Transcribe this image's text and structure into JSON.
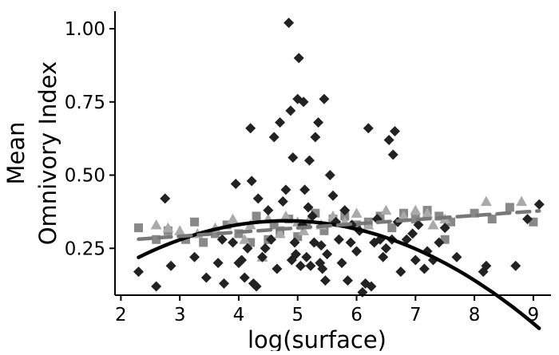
{
  "chart_data": {
    "type": "scatter",
    "title": "",
    "xlabel": "log(surface)",
    "ylabel_lines": [
      "Mean",
      "Omnivory Index"
    ],
    "xlim": [
      1.9,
      9.3
    ],
    "ylim": [
      0.09,
      1.06
    ],
    "x_ticks": [
      2,
      3,
      4,
      5,
      6,
      7,
      8,
      9
    ],
    "x_tick_labels": [
      "2",
      "3",
      "4",
      "5",
      "6",
      "7",
      "8",
      "9"
    ],
    "y_ticks": [
      0.25,
      0.5,
      0.75,
      1.0
    ],
    "y_tick_labels": [
      "0.25",
      "0.50",
      "0.75",
      "1.00"
    ],
    "grid": false,
    "legend": "none",
    "series": [
      {
        "marker": "diamond",
        "color": "#222222",
        "points": [
          [
            2.3,
            0.17
          ],
          [
            2.6,
            0.12
          ],
          [
            2.75,
            0.42
          ],
          [
            2.85,
            0.19
          ],
          [
            3.25,
            0.22
          ],
          [
            3.45,
            0.15
          ],
          [
            3.65,
            0.2
          ],
          [
            3.72,
            0.28
          ],
          [
            3.75,
            0.13
          ],
          [
            3.9,
            0.27
          ],
          [
            3.95,
            0.47
          ],
          [
            4.0,
            0.2
          ],
          [
            4.05,
            0.21
          ],
          [
            4.1,
            0.15
          ],
          [
            4.15,
            0.25
          ],
          [
            4.2,
            0.66
          ],
          [
            4.22,
            0.48
          ],
          [
            4.25,
            0.13
          ],
          [
            4.3,
            0.12
          ],
          [
            4.33,
            0.42
          ],
          [
            4.4,
            0.22
          ],
          [
            4.45,
            0.25
          ],
          [
            4.5,
            0.38
          ],
          [
            4.55,
            0.28
          ],
          [
            4.6,
            0.63
          ],
          [
            4.65,
            0.18
          ],
          [
            4.7,
            0.68
          ],
          [
            4.75,
            0.41
          ],
          [
            4.8,
            0.45
          ],
          [
            4.85,
            1.02
          ],
          [
            4.88,
            0.72
          ],
          [
            4.9,
            0.21
          ],
          [
            4.92,
            0.56
          ],
          [
            4.95,
            0.27
          ],
          [
            4.97,
            0.23
          ],
          [
            5.0,
            0.76
          ],
          [
            5.02,
            0.9
          ],
          [
            5.05,
            0.19
          ],
          [
            5.08,
            0.33
          ],
          [
            5.1,
            0.75
          ],
          [
            5.12,
            0.45
          ],
          [
            5.15,
            0.22
          ],
          [
            5.18,
            0.39
          ],
          [
            5.2,
            0.55
          ],
          [
            5.22,
            0.19
          ],
          [
            5.25,
            0.36
          ],
          [
            5.28,
            0.27
          ],
          [
            5.3,
            0.63
          ],
          [
            5.35,
            0.68
          ],
          [
            5.38,
            0.2
          ],
          [
            5.4,
            0.26
          ],
          [
            5.42,
            0.18
          ],
          [
            5.45,
            0.76
          ],
          [
            5.47,
            0.14
          ],
          [
            5.5,
            0.23
          ],
          [
            5.55,
            0.5
          ],
          [
            5.6,
            0.43
          ],
          [
            5.65,
            0.34
          ],
          [
            5.7,
            0.28
          ],
          [
            5.75,
            0.2
          ],
          [
            5.8,
            0.38
          ],
          [
            5.85,
            0.14
          ],
          [
            5.9,
            0.27
          ],
          [
            5.92,
            0.33
          ],
          [
            6.0,
            0.24
          ],
          [
            6.05,
            0.31
          ],
          [
            6.1,
            0.1
          ],
          [
            6.15,
            0.13
          ],
          [
            6.2,
            0.66
          ],
          [
            6.25,
            0.12
          ],
          [
            6.3,
            0.27
          ],
          [
            6.35,
            0.35
          ],
          [
            6.4,
            0.28
          ],
          [
            6.45,
            0.22
          ],
          [
            6.5,
            0.25
          ],
          [
            6.55,
            0.62
          ],
          [
            6.6,
            0.28
          ],
          [
            6.62,
            0.57
          ],
          [
            6.65,
            0.65
          ],
          [
            6.7,
            0.34
          ],
          [
            6.75,
            0.17
          ],
          [
            6.85,
            0.28
          ],
          [
            6.95,
            0.3
          ],
          [
            7.0,
            0.21
          ],
          [
            7.05,
            0.33
          ],
          [
            7.15,
            0.18
          ],
          [
            7.2,
            0.24
          ],
          [
            7.3,
            0.21
          ],
          [
            7.4,
            0.27
          ],
          [
            7.5,
            0.32
          ],
          [
            7.7,
            0.22
          ],
          [
            8.15,
            0.17
          ],
          [
            8.2,
            0.19
          ],
          [
            8.7,
            0.19
          ],
          [
            8.9,
            0.35
          ],
          [
            9.1,
            0.4
          ]
        ]
      },
      {
        "marker": "square",
        "color": "#888888",
        "points": [
          [
            2.3,
            0.32
          ],
          [
            2.6,
            0.28
          ],
          [
            2.8,
            0.31
          ],
          [
            3.1,
            0.28
          ],
          [
            3.25,
            0.34
          ],
          [
            3.4,
            0.27
          ],
          [
            3.6,
            0.3
          ],
          [
            3.8,
            0.33
          ],
          [
            4.0,
            0.3
          ],
          [
            4.2,
            0.27
          ],
          [
            4.3,
            0.36
          ],
          [
            4.5,
            0.28
          ],
          [
            4.6,
            0.33
          ],
          [
            4.7,
            0.31
          ],
          [
            4.85,
            0.35
          ],
          [
            5.0,
            0.29
          ],
          [
            5.15,
            0.33
          ],
          [
            5.3,
            0.37
          ],
          [
            5.45,
            0.31
          ],
          [
            5.6,
            0.35
          ],
          [
            5.8,
            0.36
          ],
          [
            6.0,
            0.33
          ],
          [
            6.2,
            0.34
          ],
          [
            6.4,
            0.36
          ],
          [
            6.6,
            0.32
          ],
          [
            6.8,
            0.37
          ],
          [
            7.0,
            0.35
          ],
          [
            7.2,
            0.38
          ],
          [
            7.4,
            0.36
          ],
          [
            7.5,
            0.28
          ],
          [
            7.6,
            0.34
          ],
          [
            8.0,
            0.37
          ],
          [
            8.3,
            0.35
          ],
          [
            8.6,
            0.39
          ],
          [
            9.0,
            0.34
          ]
        ]
      },
      {
        "marker": "triangle",
        "color": "#aaaaaa",
        "points": [
          [
            2.6,
            0.33
          ],
          [
            2.8,
            0.32
          ],
          [
            3.0,
            0.31
          ],
          [
            3.3,
            0.3
          ],
          [
            3.6,
            0.32
          ],
          [
            3.9,
            0.35
          ],
          [
            4.1,
            0.28
          ],
          [
            4.2,
            0.33
          ],
          [
            4.4,
            0.22
          ],
          [
            4.5,
            0.35
          ],
          [
            4.7,
            0.3
          ],
          [
            4.8,
            0.36
          ],
          [
            5.0,
            0.34
          ],
          [
            5.1,
            0.31
          ],
          [
            5.2,
            0.35
          ],
          [
            5.4,
            0.33
          ],
          [
            5.6,
            0.36
          ],
          [
            5.8,
            0.34
          ],
          [
            6.0,
            0.37
          ],
          [
            6.2,
            0.33
          ],
          [
            6.5,
            0.38
          ],
          [
            6.8,
            0.36
          ],
          [
            7.0,
            0.38
          ],
          [
            7.2,
            0.37
          ],
          [
            7.3,
            0.33
          ],
          [
            7.5,
            0.35
          ],
          [
            8.2,
            0.41
          ],
          [
            8.8,
            0.41
          ]
        ]
      }
    ],
    "fits": [
      {
        "color": "#000000",
        "dash": "solid",
        "width": 4.5,
        "coef": [
          -0.1153,
          0.1912,
          -0.0199
        ]
      },
      {
        "color": "#777777",
        "dash": "dashed",
        "width": 4.5,
        "coef": [
          0.2486,
          0.0142,
          0.0
        ]
      }
    ]
  }
}
